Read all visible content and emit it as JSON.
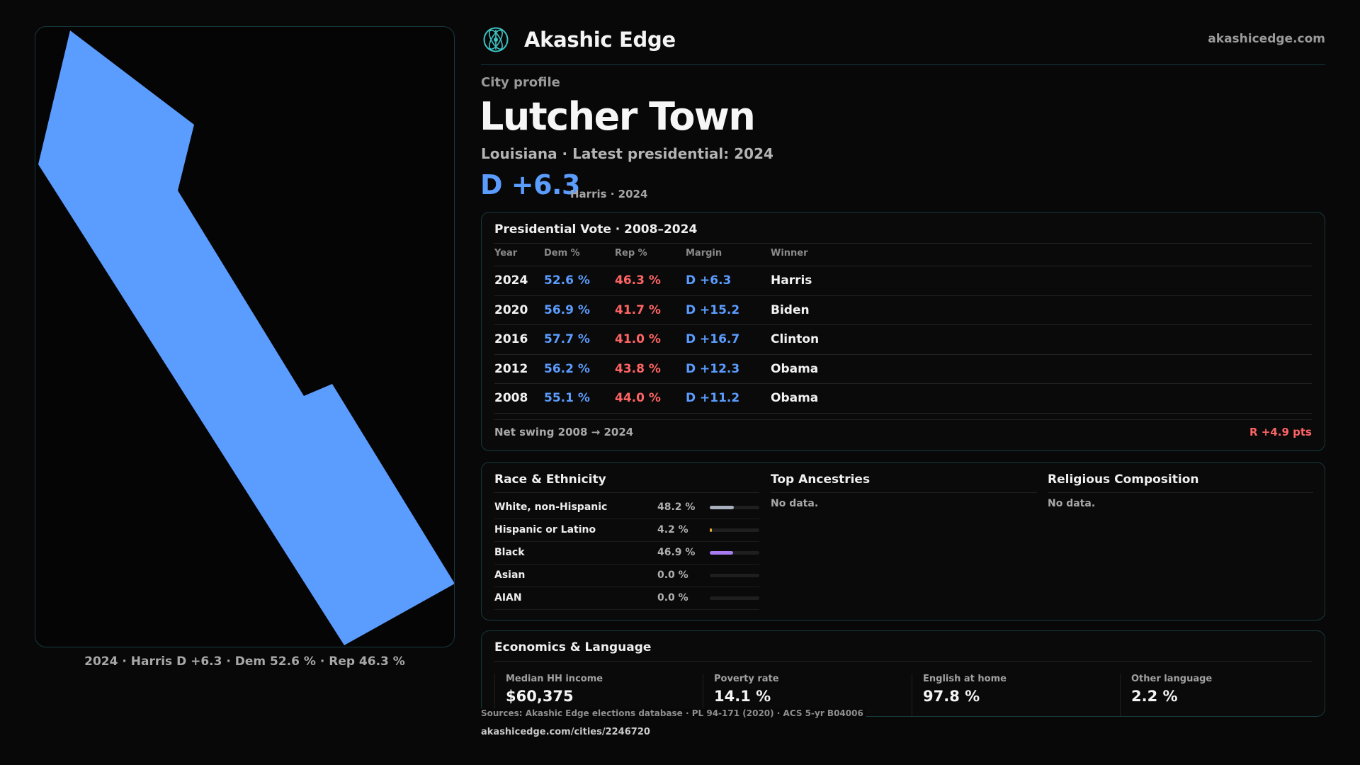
{
  "header": {
    "brand": "Akashic Edge",
    "site_url": "akashicedge.com",
    "logo_icon": "atom-globe-icon",
    "accent_color": "#3fc3c3"
  },
  "profile": {
    "eyebrow": "City profile",
    "title": "Lutcher Town",
    "subtitle": "Louisiana · Latest presidential: 2024",
    "headline_margin": "D +6.3",
    "headline_note": "Harris · 2024"
  },
  "map": {
    "caption": "2024 · Harris D +6.3 · Dem 52.6 % · Rep 46.3 %",
    "fill_color": "#5b9cff"
  },
  "vote": {
    "title": "Presidential Vote · 2008–2024",
    "headers": {
      "year": "Year",
      "dem": "Dem %",
      "rep": "Rep %",
      "margin": "Margin",
      "winner": "Winner"
    },
    "rows": [
      {
        "year": "2024",
        "dem": "52.6 %",
        "rep": "46.3 %",
        "margin": "D +6.3",
        "winner": "Harris"
      },
      {
        "year": "2020",
        "dem": "56.9 %",
        "rep": "41.7 %",
        "margin": "D +15.2",
        "winner": "Biden"
      },
      {
        "year": "2016",
        "dem": "57.7 %",
        "rep": "41.0 %",
        "margin": "D +16.7",
        "winner": "Clinton"
      },
      {
        "year": "2012",
        "dem": "56.2 %",
        "rep": "43.8 %",
        "margin": "D +12.3",
        "winner": "Obama"
      },
      {
        "year": "2008",
        "dem": "55.1 %",
        "rep": "44.0 %",
        "margin": "D +11.2",
        "winner": "Obama"
      }
    ],
    "swing_label": "Net swing 2008 → 2024",
    "swing_value": "R +4.9 pts",
    "dem_color": "#5b9cff",
    "rep_color": "#ff6464"
  },
  "race": {
    "title": "Race & Ethnicity",
    "rows": [
      {
        "label": "White, non-Hispanic",
        "pct": "48.2 %",
        "value": 48.2,
        "color": "#a9b0bd"
      },
      {
        "label": "Hispanic or Latino",
        "pct": "4.2 %",
        "value": 4.2,
        "color": "#e0a93a"
      },
      {
        "label": "Black",
        "pct": "46.9 %",
        "value": 46.9,
        "color": "#a67cf0"
      },
      {
        "label": "Asian",
        "pct": "0.0 %",
        "value": 0.0,
        "color": "#4fc3c3"
      },
      {
        "label": "AIAN",
        "pct": "0.0 %",
        "value": 0.0,
        "color": "#e07a7a"
      }
    ]
  },
  "ancestries": {
    "title": "Top Ancestries",
    "empty": "No data."
  },
  "religion": {
    "title": "Religious Composition",
    "empty": "No data."
  },
  "economics": {
    "title": "Economics & Language",
    "stats": [
      {
        "label": "Median HH income",
        "value": "$60,375"
      },
      {
        "label": "Poverty rate",
        "value": "14.1 %"
      },
      {
        "label": "English at home",
        "value": "97.8 %"
      },
      {
        "label": "Other language",
        "value": "2.2 %"
      }
    ]
  },
  "footer": {
    "sources": "Sources: Akashic Edge elections database · PL 94-171 (2020) · ACS 5-yr B04006",
    "url": "akashicedge.com/cities/2246720"
  }
}
